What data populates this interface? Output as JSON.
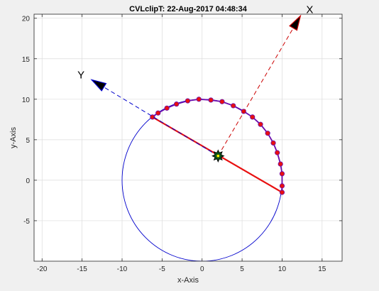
{
  "chart_data": {
    "type": "scatter",
    "title": "CVLclipT: 22-Aug-2017 04:48:34",
    "xlabel": "x-Axis",
    "ylabel": "y-Axis",
    "xlim": [
      -21,
      17.5
    ],
    "ylim": [
      -10,
      20.5
    ],
    "xticks": [
      -20,
      -15,
      -10,
      -5,
      0,
      5,
      10,
      15
    ],
    "yticks": [
      -5,
      0,
      5,
      10,
      15,
      20
    ],
    "grid": true,
    "circle": {
      "center": [
        0,
        0
      ],
      "radius": 10,
      "color": "#0000cc"
    },
    "arc_points": [
      [
        -6.2,
        7.8
      ],
      [
        -5.5,
        8.3
      ],
      [
        -4.4,
        8.9
      ],
      [
        -3.2,
        9.4
      ],
      [
        -1.8,
        9.8
      ],
      [
        -0.4,
        10.0
      ],
      [
        1.1,
        9.9
      ],
      [
        2.5,
        9.7
      ],
      [
        3.9,
        9.2
      ],
      [
        5.2,
        8.5
      ],
      [
        6.3,
        7.8
      ],
      [
        7.3,
        6.9
      ],
      [
        8.2,
        5.8
      ],
      [
        8.9,
        4.6
      ],
      [
        9.4,
        3.4
      ],
      [
        9.8,
        2.0
      ],
      [
        10.0,
        0.8
      ],
      [
        10.0,
        -0.7
      ],
      [
        10.0,
        -1.5
      ]
    ],
    "segment": {
      "from": [
        -6.2,
        7.8
      ],
      "to": [
        10.0,
        -1.5
      ],
      "color": "#e81010"
    },
    "clip_center": [
      2.0,
      3.0
    ],
    "frame_origin": [
      2.0,
      3.0
    ],
    "x_axis_dir": {
      "label": "X",
      "to": [
        12.3,
        20.3
      ],
      "color": "#cc0000"
    },
    "y_axis_dir": {
      "label": "Y",
      "to": [
        -13.8,
        12.4
      ],
      "color": "#0000cc"
    },
    "point_color": "#e81010",
    "point_edge_color": "#6a0dad"
  }
}
